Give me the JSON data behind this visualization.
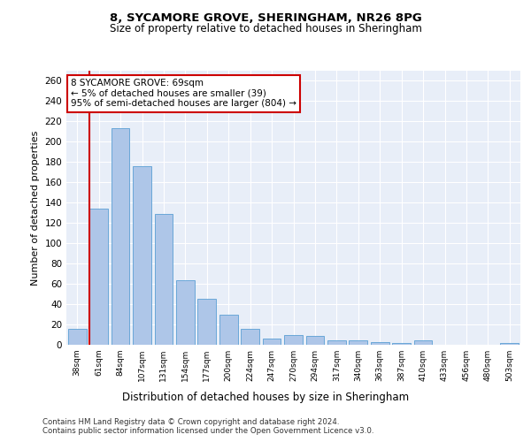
{
  "title1": "8, SYCAMORE GROVE, SHERINGHAM, NR26 8PG",
  "title2": "Size of property relative to detached houses in Sheringham",
  "xlabel": "Distribution of detached houses by size in Sheringham",
  "ylabel": "Number of detached properties",
  "categories": [
    "38sqm",
    "61sqm",
    "84sqm",
    "107sqm",
    "131sqm",
    "154sqm",
    "177sqm",
    "200sqm",
    "224sqm",
    "247sqm",
    "270sqm",
    "294sqm",
    "317sqm",
    "340sqm",
    "363sqm",
    "387sqm",
    "410sqm",
    "433sqm",
    "456sqm",
    "480sqm",
    "503sqm"
  ],
  "values": [
    16,
    134,
    213,
    176,
    129,
    64,
    45,
    30,
    16,
    6,
    10,
    9,
    4,
    4,
    3,
    2,
    4,
    0,
    0,
    0,
    2
  ],
  "bar_color": "#aec6e8",
  "bar_edge_color": "#5a9fd4",
  "vline_color": "#cc0000",
  "annotation_text": "8 SYCAMORE GROVE: 69sqm\n← 5% of detached houses are smaller (39)\n95% of semi-detached houses are larger (804) →",
  "annotation_box_color": "#ffffff",
  "annotation_box_edge": "#cc0000",
  "ylim": [
    0,
    270
  ],
  "yticks": [
    0,
    20,
    40,
    60,
    80,
    100,
    120,
    140,
    160,
    180,
    200,
    220,
    240,
    260
  ],
  "background_color": "#e8eef8",
  "footer1": "Contains HM Land Registry data © Crown copyright and database right 2024.",
  "footer2": "Contains public sector information licensed under the Open Government Licence v3.0."
}
